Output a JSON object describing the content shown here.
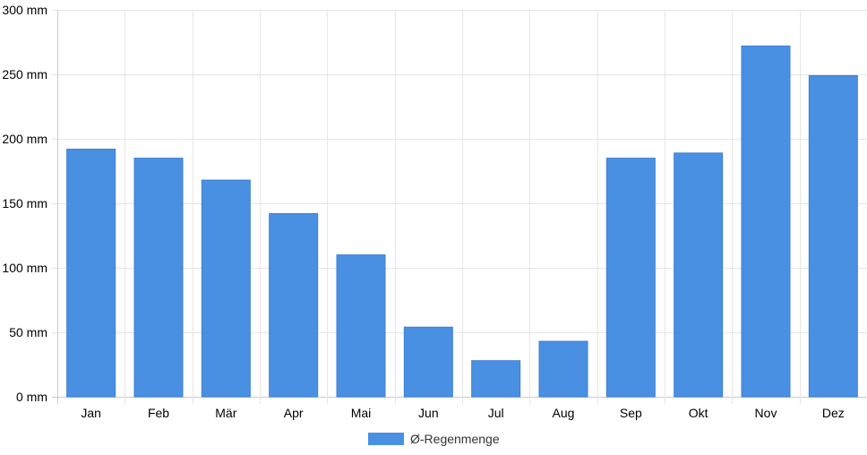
{
  "chart_data": {
    "type": "bar",
    "categories": [
      "Jan",
      "Feb",
      "Mär",
      "Apr",
      "Mai",
      "Jun",
      "Jul",
      "Aug",
      "Sep",
      "Okt",
      "Nov",
      "Dez"
    ],
    "series": [
      {
        "name": "Ø-Regenmenge",
        "color": "#4a90e2",
        "values": [
          192,
          185,
          168,
          142,
          110,
          54,
          28,
          43,
          185,
          189,
          272,
          249
        ]
      }
    ],
    "y_ticks": [
      "0 mm",
      "50 mm",
      "100 mm",
      "150 mm",
      "200 mm",
      "250 mm",
      "300 mm"
    ],
    "ylim": [
      0,
      300
    ],
    "grid": true,
    "legend_position": "bottom-center"
  }
}
